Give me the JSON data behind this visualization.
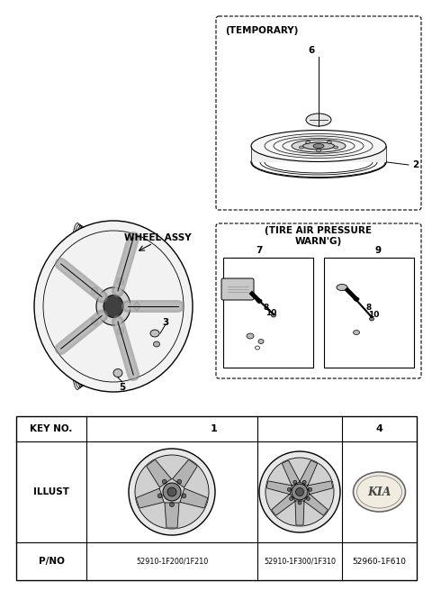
{
  "bg_color": "#ffffff",
  "fig_width": 4.8,
  "fig_height": 6.56,
  "temporary_label": "(TEMPORARY)",
  "tire_pressure_label": "(TIRE AIR PRESSURE\nWARN'G)",
  "wheel_assy_label": "WHEEL ASSY",
  "key_no_label": "KEY NO.",
  "illust_label": "ILLUST",
  "pno_label": "P/NO",
  "key1": "1",
  "key4": "4",
  "pno1": "52910-1F200/1F210",
  "pno2": "52910-1F300/1F310",
  "pno3": "52960-1F610",
  "part2": "2",
  "part3": "3",
  "part5": "5",
  "part6": "6",
  "part7": "7",
  "part8": "8",
  "part9": "9",
  "part10": "10"
}
